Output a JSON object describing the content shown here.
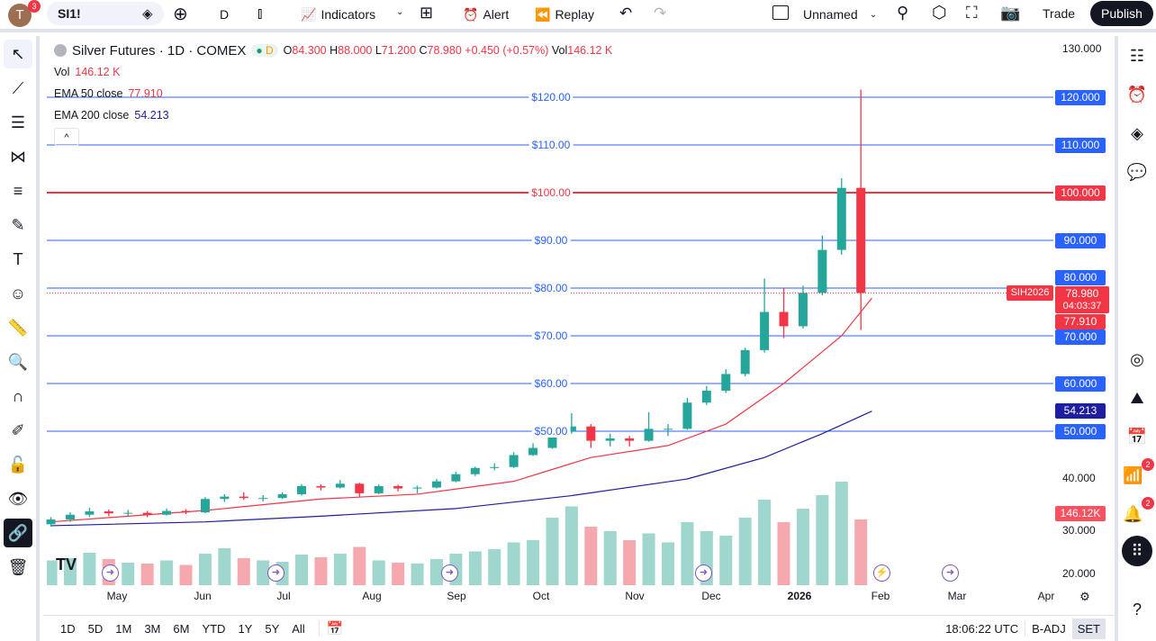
{
  "topbar": {
    "avatar": "T",
    "avatar_badge": "3",
    "symbol": "SI1!",
    "interval": "D",
    "indicators": "Indicators",
    "alert": "Alert",
    "replay": "Replay",
    "layout_name": "Unnamed",
    "trade": "Trade",
    "publish": "Publish"
  },
  "legend": {
    "title": "Silver Futures · 1D · COMEX",
    "mode": "D",
    "o_label": "O",
    "o": "84.300",
    "h_label": "H",
    "h": "88.000",
    "l_label": "L",
    "l": "71.200",
    "c_label": "C",
    "c": "78.980",
    "change": "+0.450 (+0.57%)",
    "vol_label": "Vol",
    "vol": "146.12 K",
    "vol_row_label": "Vol",
    "vol_row": "146.12 K",
    "ema50_label": "EMA 50 close",
    "ema50": "77.910",
    "ema200_label": "EMA 200 close",
    "ema200": "54.213",
    "collapse": "^"
  },
  "price_axis": {
    "plain": [
      "130.000",
      "40.000",
      "30.000",
      "20.000"
    ],
    "levels": [
      {
        "price": 120,
        "label": "120.000",
        "mid": "$120.00",
        "color": "#2962ff"
      },
      {
        "price": 110,
        "label": "110.000",
        "mid": "$110.00",
        "color": "#2962ff"
      },
      {
        "price": 100,
        "label": "100.000",
        "mid": "$100.00",
        "color": "#f23645"
      },
      {
        "price": 90,
        "label": "90.000",
        "mid": "$90.00",
        "color": "#2962ff"
      },
      {
        "price": 80,
        "label": "80.000",
        "mid": "$80.00",
        "color": "#2962ff"
      },
      {
        "price": 70,
        "label": "70.000",
        "mid": "$70.00",
        "color": "#2962ff"
      },
      {
        "price": 60,
        "label": "60.000",
        "mid": "$60.00",
        "color": "#2962ff"
      },
      {
        "price": 50,
        "label": "50.000",
        "mid": "$50.00",
        "color": "#2962ff"
      }
    ],
    "last_price": "78.980",
    "countdown": "04:03:37",
    "contract": "SIH2026",
    "ema50_badge": "77.910",
    "ema200_badge": "54.213",
    "vol_badge": "146.12K"
  },
  "time_axis": [
    "May",
    "Jun",
    "Jul",
    "Aug",
    "Sep",
    "Oct",
    "Nov",
    "Dec",
    "2026",
    "Feb",
    "Mar",
    "Apr"
  ],
  "bottombar": {
    "ranges": [
      "1D",
      "5D",
      "1M",
      "3M",
      "6M",
      "YTD",
      "1Y",
      "5Y",
      "All"
    ],
    "clock": "18:06:22 UTC",
    "badj": "B-ADJ",
    "set": "SET"
  },
  "right_badges": {
    "ideas": "2",
    "alerts": "2"
  },
  "colors": {
    "up": "#26a69a",
    "down": "#f23645",
    "ema50": "#f23645",
    "ema200": "#1e1e9e",
    "level": "#2962ff"
  },
  "chart_data": {
    "type": "candlestick",
    "ylim": [
      20,
      130
    ],
    "candles": [
      [
        "2025-04-07",
        30.5,
        32,
        30,
        31.5
      ],
      [
        "2025-04-14",
        31.5,
        33,
        31,
        32.5
      ],
      [
        "2025-04-21",
        32.5,
        34,
        32,
        33.2
      ],
      [
        "2025-04-28",
        33.2,
        33.6,
        32.2,
        32.8
      ],
      [
        "2025-05-05",
        32.8,
        33.5,
        32.3,
        32.9
      ],
      [
        "2025-05-12",
        32.9,
        33.3,
        32,
        32.5
      ],
      [
        "2025-05-19",
        32.5,
        33.8,
        32.3,
        33.3
      ],
      [
        "2025-05-26",
        33.3,
        33.7,
        32.6,
        33
      ],
      [
        "2025-06-02",
        33,
        36.2,
        32.8,
        35.8
      ],
      [
        "2025-06-09",
        35.8,
        36.8,
        35.2,
        36.3
      ],
      [
        "2025-06-16",
        36.3,
        37.2,
        35.6,
        36
      ],
      [
        "2025-06-23",
        36,
        36.6,
        35.3,
        36
      ],
      [
        "2025-06-30",
        36,
        37.2,
        35.8,
        36.8
      ],
      [
        "2025-07-07",
        36.8,
        38.9,
        36.5,
        38.5
      ],
      [
        "2025-07-14",
        38.5,
        38.9,
        37.6,
        38.2
      ],
      [
        "2025-07-21",
        38.2,
        39.8,
        38,
        39
      ],
      [
        "2025-07-28",
        39,
        39.2,
        36.3,
        37
      ],
      [
        "2025-08-04",
        37,
        38.8,
        36.8,
        38.5
      ],
      [
        "2025-08-11",
        38.5,
        38.8,
        37.4,
        38
      ],
      [
        "2025-08-18",
        38,
        38.6,
        37,
        38.2
      ],
      [
        "2025-08-25",
        38.2,
        40,
        38,
        39.5
      ],
      [
        "2025-09-01",
        39.5,
        41.5,
        39.3,
        41
      ],
      [
        "2025-09-08",
        41,
        42.6,
        40.6,
        42.3
      ],
      [
        "2025-09-15",
        42.3,
        43.3,
        41.8,
        42.5
      ],
      [
        "2025-09-22",
        42.5,
        45.6,
        42.3,
        45
      ],
      [
        "2025-09-29",
        45,
        47.5,
        44.8,
        46.5
      ],
      [
        "2025-10-06",
        46.5,
        50.8,
        46.3,
        50
      ],
      [
        "2025-10-13",
        50,
        53.8,
        49.5,
        51
      ],
      [
        "2025-10-20",
        51,
        51.5,
        46.5,
        48
      ],
      [
        "2025-10-27",
        48,
        49.5,
        46.8,
        48.5
      ],
      [
        "2025-11-03",
        48.5,
        49,
        46.8,
        48
      ],
      [
        "2025-11-10",
        48,
        54,
        47.8,
        50.5
      ],
      [
        "2025-11-17",
        50.5,
        51.5,
        49,
        50.5
      ],
      [
        "2025-11-24",
        50.5,
        57,
        50.3,
        56
      ],
      [
        "2025-12-01",
        56,
        59.5,
        55.5,
        58.5
      ],
      [
        "2025-12-08",
        58.5,
        63,
        58,
        62
      ],
      [
        "2025-12-15",
        62,
        67.5,
        61.5,
        67
      ],
      [
        "2025-12-22",
        67,
        82,
        66.5,
        75
      ],
      [
        "2025-12-29",
        75,
        80,
        69.5,
        72
      ],
      [
        "2026-01-05",
        72,
        80.5,
        71.5,
        79
      ],
      [
        "2026-01-12",
        79,
        91,
        78.5,
        88
      ],
      [
        "2026-01-19",
        88,
        103,
        87,
        101
      ],
      [
        "2026-01-26",
        101,
        121.6,
        71.2,
        78.98
      ]
    ],
    "volume_k": [
      55,
      60,
      72,
      58,
      50,
      48,
      55,
      45,
      70,
      82,
      60,
      55,
      52,
      68,
      62,
      70,
      85,
      55,
      50,
      48,
      58,
      70,
      75,
      80,
      95,
      100,
      150,
      175,
      130,
      120,
      100,
      115,
      95,
      140,
      120,
      110,
      150,
      190,
      140,
      170,
      200,
      230,
      146.12
    ],
    "ema50": [
      [
        "2025-04-07",
        31
      ],
      [
        "2025-06-02",
        33.4
      ],
      [
        "2025-07-14",
        35.8
      ],
      [
        "2025-08-18",
        36.8
      ],
      [
        "2025-09-22",
        39.5
      ],
      [
        "2025-10-20",
        44.5
      ],
      [
        "2025-11-17",
        47
      ],
      [
        "2025-12-08",
        51.5
      ],
      [
        "2025-12-29",
        60
      ],
      [
        "2026-01-19",
        70
      ],
      [
        "2026-01-30",
        77.91
      ]
    ],
    "ema200": [
      [
        "2025-04-07",
        30.2
      ],
      [
        "2025-06-02",
        31
      ],
      [
        "2025-07-14",
        32.2
      ],
      [
        "2025-09-01",
        33.8
      ],
      [
        "2025-10-13",
        36.5
      ],
      [
        "2025-11-24",
        40
      ],
      [
        "2025-12-22",
        44.5
      ],
      [
        "2026-01-12",
        49.5
      ],
      [
        "2026-01-30",
        54.213
      ]
    ]
  }
}
